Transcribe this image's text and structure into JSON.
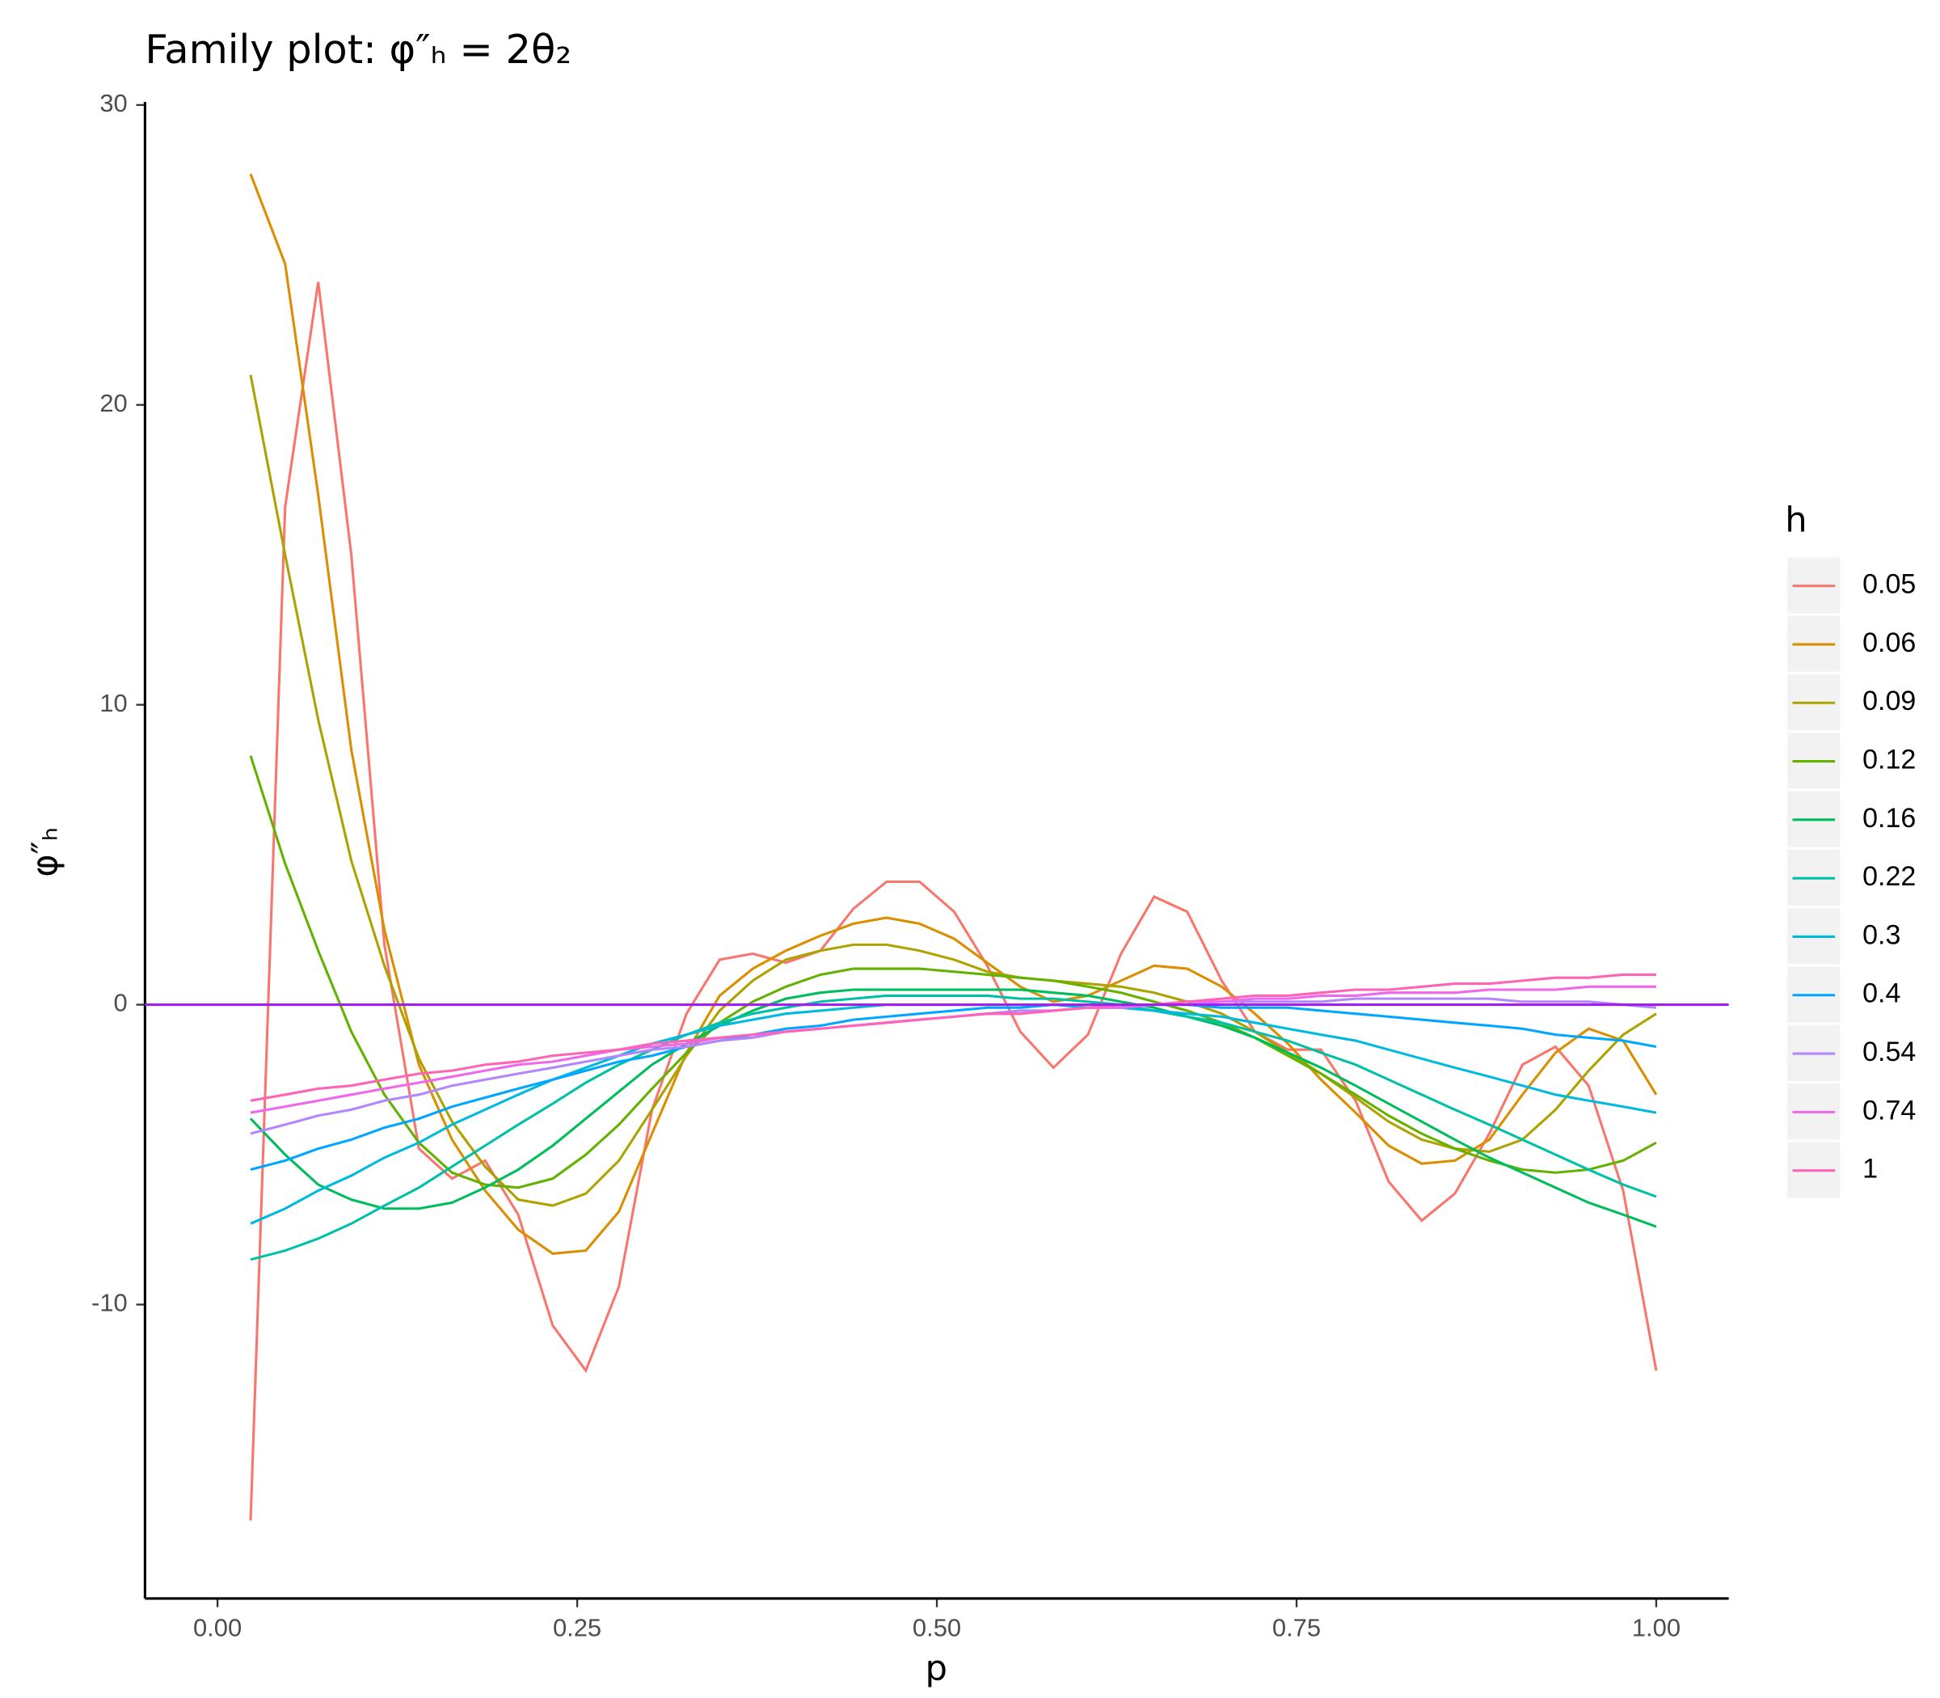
{
  "chart_data": {
    "type": "line",
    "title": "Family plot: φ″ₕ = 2θ₂",
    "x_label": "p",
    "y_label": "φ″ₕ",
    "legend_title": "h",
    "legend_position": "right",
    "grid": false,
    "xlim": [
      -0.0504,
      1.0504
    ],
    "ylim": [
      -19.8,
      30.1
    ],
    "xticks": [
      {
        "value": 0,
        "label": "0.00"
      },
      {
        "value": 0.25,
        "label": "0.25"
      },
      {
        "value": 0.5,
        "label": "0.50"
      },
      {
        "value": 0.75,
        "label": "0.75"
      },
      {
        "value": 1,
        "label": "1.00"
      }
    ],
    "yticks": [
      -10,
      0,
      10,
      20,
      30
    ],
    "hline": 0,
    "hline_color": "#a020f0",
    "x": [
      0.023,
      0.047,
      0.07,
      0.093,
      0.116,
      0.14,
      0.163,
      0.186,
      0.209,
      0.233,
      0.256,
      0.279,
      0.302,
      0.326,
      0.349,
      0.372,
      0.395,
      0.419,
      0.442,
      0.465,
      0.488,
      0.512,
      0.535,
      0.558,
      0.581,
      0.605,
      0.628,
      0.651,
      0.674,
      0.698,
      0.721,
      0.744,
      0.767,
      0.791,
      0.814,
      0.837,
      0.86,
      0.884,
      0.907,
      0.93,
      0.953,
      0.977,
      1.0
    ],
    "series": [
      {
        "name": "0.05",
        "color": "#F8766D",
        "values": [
          -17.2,
          16.6,
          24.1,
          15,
          2,
          -4.8,
          -5.8,
          -5.2,
          -7,
          -10.7,
          -12.2,
          -9.4,
          -3.5,
          -0.3,
          1.5,
          1.7,
          1.4,
          1.8,
          3.2,
          4.1,
          4.1,
          3.1,
          1.3,
          -0.9,
          -2.1,
          -1.0,
          1.7,
          3.6,
          3.1,
          0.8,
          -0.9,
          -1.5,
          -1.5,
          -3.2,
          -5.9,
          -7.2,
          -6.3,
          -4.3,
          -2.0,
          -1.4,
          -2.7,
          -6.2,
          -12.2
        ]
      },
      {
        "name": "0.06",
        "color": "#DB8E00",
        "values": [
          27.7,
          24.7,
          17,
          8.5,
          2.5,
          -2,
          -4.5,
          -6.2,
          -7.5,
          -8.3,
          -8.2,
          -6.9,
          -4.3,
          -1.6,
          0.3,
          1.2,
          1.8,
          2.3,
          2.7,
          2.9,
          2.7,
          2.2,
          1.4,
          0.6,
          0.1,
          0.3,
          0.8,
          1.3,
          1.2,
          0.6,
          -0.3,
          -1.3,
          -2.5,
          -3.6,
          -4.7,
          -5.3,
          -5.2,
          -4.5,
          -3,
          -1.6,
          -0.8,
          -1.2,
          -3.0
        ]
      },
      {
        "name": "0.09",
        "color": "#AEA200",
        "values": [
          21,
          15,
          9.5,
          4.8,
          1.3,
          -1.8,
          -3.9,
          -5.4,
          -6.5,
          -6.7,
          -6.3,
          -5.2,
          -3.5,
          -1.7,
          -0.2,
          0.8,
          1.5,
          1.8,
          2.0,
          2.0,
          1.8,
          1.5,
          1.1,
          0.9,
          0.8,
          0.7,
          0.6,
          0.4,
          0.1,
          -0.3,
          -0.9,
          -1.6,
          -2.3,
          -3.1,
          -3.9,
          -4.5,
          -4.8,
          -4.9,
          -4.5,
          -3.5,
          -2.2,
          -1.0,
          -0.3
        ]
      },
      {
        "name": "0.12",
        "color": "#64B200",
        "values": [
          8.3,
          4.7,
          1.8,
          -0.9,
          -3.0,
          -4.6,
          -5.6,
          -6.0,
          -6.1,
          -5.8,
          -5.0,
          -4.0,
          -2.8,
          -1.6,
          -0.6,
          0.1,
          0.6,
          1.0,
          1.2,
          1.2,
          1.2,
          1.1,
          1.0,
          0.9,
          0.8,
          0.6,
          0.4,
          0.1,
          -0.2,
          -0.6,
          -1.1,
          -1.7,
          -2.3,
          -3.0,
          -3.7,
          -4.3,
          -4.8,
          -5.2,
          -5.5,
          -5.6,
          -5.5,
          -5.2,
          -4.6
        ]
      },
      {
        "name": "0.16",
        "color": "#00BD5C",
        "values": [
          -3.8,
          -5.0,
          -6.0,
          -6.5,
          -6.8,
          -6.8,
          -6.6,
          -6.1,
          -5.5,
          -4.7,
          -3.8,
          -2.9,
          -2.0,
          -1.3,
          -0.7,
          -0.2,
          0.2,
          0.4,
          0.5,
          0.5,
          0.5,
          0.5,
          0.5,
          0.5,
          0.4,
          0.3,
          0.1,
          -0.1,
          -0.4,
          -0.7,
          -1.1,
          -1.6,
          -2.1,
          -2.7,
          -3.3,
          -3.9,
          -4.5,
          -5.1,
          -5.6,
          -6.1,
          -6.6,
          -7.0,
          -7.4
        ]
      },
      {
        "name": "0.22",
        "color": "#00C1A7",
        "values": [
          -8.5,
          -8.2,
          -7.8,
          -7.3,
          -6.7,
          -6.1,
          -5.4,
          -4.7,
          -4.0,
          -3.3,
          -2.6,
          -2.0,
          -1.5,
          -1.0,
          -0.6,
          -0.3,
          -0.1,
          0.1,
          0.2,
          0.3,
          0.3,
          0.3,
          0.3,
          0.2,
          0.2,
          0.1,
          0.0,
          -0.2,
          -0.4,
          -0.6,
          -0.9,
          -1.2,
          -1.6,
          -2.0,
          -2.5,
          -3.0,
          -3.5,
          -4.0,
          -4.5,
          -5.0,
          -5.5,
          -6.0,
          -6.4
        ]
      },
      {
        "name": "0.3",
        "color": "#00BADE",
        "values": [
          -7.3,
          -6.8,
          -6.2,
          -5.7,
          -5.1,
          -4.6,
          -4.0,
          -3.5,
          -3.0,
          -2.5,
          -2.1,
          -1.7,
          -1.3,
          -1.0,
          -0.7,
          -0.5,
          -0.3,
          -0.2,
          -0.1,
          0.0,
          0.0,
          0.0,
          0.0,
          0.0,
          0.0,
          -0.1,
          -0.1,
          -0.2,
          -0.3,
          -0.4,
          -0.6,
          -0.8,
          -1.0,
          -1.2,
          -1.5,
          -1.8,
          -2.1,
          -2.4,
          -2.7,
          -3.0,
          -3.2,
          -3.4,
          -3.6
        ]
      },
      {
        "name": "0.4",
        "color": "#00A6FF",
        "values": [
          -5.5,
          -5.2,
          -4.8,
          -4.5,
          -4.1,
          -3.8,
          -3.4,
          -3.1,
          -2.8,
          -2.5,
          -2.2,
          -1.9,
          -1.7,
          -1.4,
          -1.2,
          -1.0,
          -0.8,
          -0.7,
          -0.5,
          -0.4,
          -0.3,
          -0.2,
          -0.1,
          -0.1,
          0.0,
          0.0,
          0.0,
          0.0,
          0.0,
          -0.1,
          -0.1,
          -0.1,
          -0.2,
          -0.3,
          -0.4,
          -0.5,
          -0.6,
          -0.7,
          -0.8,
          -1.0,
          -1.1,
          -1.2,
          -1.4
        ]
      },
      {
        "name": "0.54",
        "color": "#B385FF",
        "values": [
          -4.3,
          -4.0,
          -3.7,
          -3.5,
          -3.2,
          -3.0,
          -2.7,
          -2.5,
          -2.3,
          -2.1,
          -1.9,
          -1.7,
          -1.5,
          -1.4,
          -1.2,
          -1.1,
          -0.9,
          -0.8,
          -0.7,
          -0.6,
          -0.5,
          -0.4,
          -0.3,
          -0.2,
          -0.2,
          -0.1,
          -0.1,
          0.0,
          0.0,
          0.1,
          0.1,
          0.1,
          0.1,
          0.2,
          0.2,
          0.2,
          0.2,
          0.2,
          0.1,
          0.1,
          0.1,
          0.0,
          -0.1
        ]
      },
      {
        "name": "0.74",
        "color": "#EF67EB",
        "values": [
          -3.6,
          -3.4,
          -3.2,
          -3.0,
          -2.8,
          -2.6,
          -2.4,
          -2.2,
          -2.0,
          -1.9,
          -1.7,
          -1.5,
          -1.4,
          -1.3,
          -1.1,
          -1.0,
          -0.9,
          -0.8,
          -0.7,
          -0.6,
          -0.5,
          -0.4,
          -0.3,
          -0.3,
          -0.2,
          -0.1,
          -0.1,
          0.0,
          0.1,
          0.1,
          0.2,
          0.2,
          0.3,
          0.3,
          0.4,
          0.4,
          0.4,
          0.5,
          0.5,
          0.5,
          0.6,
          0.6,
          0.6
        ]
      },
      {
        "name": "1",
        "color": "#FF63B6",
        "values": [
          -3.2,
          -3.0,
          -2.8,
          -2.7,
          -2.5,
          -2.3,
          -2.2,
          -2.0,
          -1.9,
          -1.7,
          -1.6,
          -1.5,
          -1.3,
          -1.2,
          -1.1,
          -1.0,
          -0.9,
          -0.8,
          -0.7,
          -0.6,
          -0.5,
          -0.4,
          -0.3,
          -0.3,
          -0.2,
          -0.1,
          0.0,
          0.0,
          0.1,
          0.2,
          0.3,
          0.3,
          0.4,
          0.5,
          0.5,
          0.6,
          0.7,
          0.7,
          0.8,
          0.9,
          0.9,
          1.0,
          1.0
        ]
      }
    ]
  }
}
